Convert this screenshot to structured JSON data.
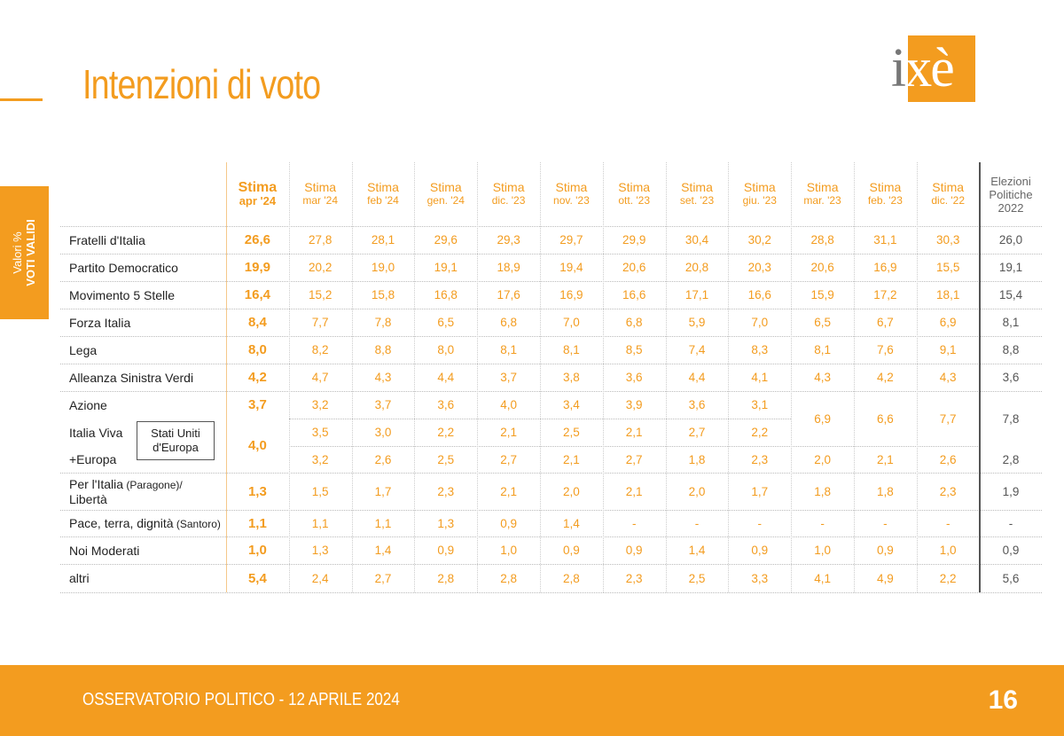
{
  "page": {
    "title": "Intenzioni di voto",
    "logo_text": "ixè",
    "side_label_line1": "Valori %",
    "side_label_line2": "VOTI VALIDI",
    "footer": "OSSERVATORIO POLITICO - 12 APRILE 2024",
    "page_number": "16",
    "stati_uniti_label_line1": "Stati Uniti",
    "stati_uniti_label_line2": "d'Europa"
  },
  "colors": {
    "accent": "#f39c1f",
    "text": "#222222",
    "muted": "#666666"
  },
  "chart_data": {
    "type": "table",
    "columns": [
      {
        "line1": "Stima",
        "line2": "apr '24"
      },
      {
        "line1": "Stima",
        "line2": "mar '24"
      },
      {
        "line1": "Stima",
        "line2": "feb '24"
      },
      {
        "line1": "Stima",
        "line2": "gen. '24"
      },
      {
        "line1": "Stima",
        "line2": "dic. '23"
      },
      {
        "line1": "Stima",
        "line2": "nov. '23"
      },
      {
        "line1": "Stima",
        "line2": "ott. '23"
      },
      {
        "line1": "Stima",
        "line2": "set. '23"
      },
      {
        "line1": "Stima",
        "line2": "giu. '23"
      },
      {
        "line1": "Stima",
        "line2": "mar. '23"
      },
      {
        "line1": "Stima",
        "line2": "feb. '23"
      },
      {
        "line1": "Stima",
        "line2": "dic. '22"
      },
      {
        "line1": "Elezioni",
        "line2": "Politiche",
        "line3": "2022"
      }
    ],
    "rows": [
      {
        "party": "Fratelli d'Italia",
        "values": [
          "26,6",
          "27,8",
          "28,1",
          "29,6",
          "29,3",
          "29,7",
          "29,9",
          "30,4",
          "30,2",
          "28,8",
          "31,1",
          "30,3",
          "26,0"
        ]
      },
      {
        "party": "Partito Democratico",
        "values": [
          "19,9",
          "20,2",
          "19,0",
          "19,1",
          "18,9",
          "19,4",
          "20,6",
          "20,8",
          "20,3",
          "20,6",
          "16,9",
          "15,5",
          "19,1"
        ]
      },
      {
        "party": "Movimento 5 Stelle",
        "values": [
          "16,4",
          "15,2",
          "15,8",
          "16,8",
          "17,6",
          "16,9",
          "16,6",
          "17,1",
          "16,6",
          "15,9",
          "17,2",
          "18,1",
          "15,4"
        ]
      },
      {
        "party": "Forza Italia",
        "values": [
          "8,4",
          "7,7",
          "7,8",
          "6,5",
          "6,8",
          "7,0",
          "6,8",
          "5,9",
          "7,0",
          "6,5",
          "6,7",
          "6,9",
          "8,1"
        ]
      },
      {
        "party": "Lega",
        "values": [
          "8,0",
          "8,2",
          "8,8",
          "8,0",
          "8,1",
          "8,1",
          "8,5",
          "7,4",
          "8,3",
          "8,1",
          "7,6",
          "9,1",
          "8,8"
        ]
      },
      {
        "party": "Alleanza Sinistra Verdi",
        "values": [
          "4,2",
          "4,7",
          "4,3",
          "4,4",
          "3,7",
          "3,8",
          "3,6",
          "4,4",
          "4,1",
          "4,3",
          "4,2",
          "4,3",
          "3,6"
        ]
      },
      {
        "party": "Azione",
        "values": [
          "3,7",
          "3,2",
          "3,7",
          "3,6",
          "4,0",
          "3,4",
          "3,9",
          "3,6",
          "3,1"
        ]
      },
      {
        "party": "Italia Viva",
        "values": [
          "",
          "3,5",
          "3,0",
          "2,2",
          "2,1",
          "2,5",
          "2,1",
          "2,7",
          "2,2"
        ]
      },
      {
        "party": "+Europa",
        "values": [
          "",
          "3,2",
          "2,6",
          "2,5",
          "2,7",
          "2,1",
          "2,7",
          "1,8",
          "2,3",
          "2,0",
          "2,1",
          "2,6",
          "2,8"
        ]
      },
      {
        "party": "Per l'Italia",
        "party_note": "(Paragone)/",
        "party_line2": "Libertà",
        "values": [
          "1,3",
          "1,5",
          "1,7",
          "2,3",
          "2,1",
          "2,0",
          "2,1",
          "2,0",
          "1,7",
          "1,8",
          "1,8",
          "2,3",
          "1,9"
        ]
      },
      {
        "party": "Pace, terra, dignità",
        "party_note": "(Santoro)",
        "values": [
          "1,1",
          "1,1",
          "1,1",
          "1,3",
          "0,9",
          "1,4",
          "-",
          "-",
          "-",
          "-",
          "-",
          "-",
          "-"
        ]
      },
      {
        "party": "Noi Moderati",
        "values": [
          "1,0",
          "1,3",
          "1,4",
          "0,9",
          "1,0",
          "0,9",
          "0,9",
          "1,4",
          "0,9",
          "1,0",
          "0,9",
          "1,0",
          "0,9"
        ]
      },
      {
        "party": "altri",
        "values": [
          "5,4",
          "2,4",
          "2,7",
          "2,8",
          "2,8",
          "2,8",
          "2,3",
          "2,5",
          "3,3",
          "4,1",
          "4,9",
          "2,2",
          "5,6"
        ]
      }
    ],
    "merged": {
      "iv_plus_europa_current": "4,0",
      "azione_italia_viva_mar23": "6,9",
      "azione_italia_viva_feb23": "6,6",
      "azione_italia_viva_dic22": "7,7",
      "azione_italia_viva_elezioni": "7,8"
    }
  }
}
